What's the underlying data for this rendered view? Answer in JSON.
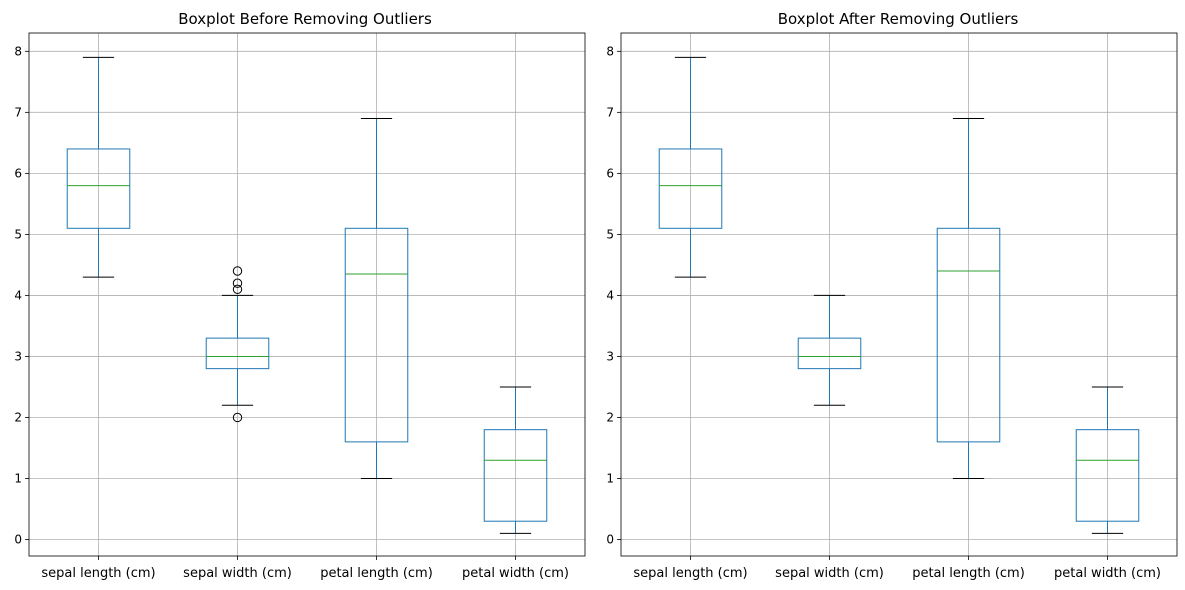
{
  "chart_data": [
    {
      "type": "boxplot",
      "title": "Boxplot Before Removing Outliers",
      "categories": [
        "sepal length (cm)",
        "sepal width (cm)",
        "petal length (cm)",
        "petal width (cm)"
      ],
      "boxes": [
        {
          "whisker_low": 4.3,
          "q1": 5.1,
          "median": 5.8,
          "q3": 6.4,
          "whisker_high": 7.9,
          "outliers": []
        },
        {
          "whisker_low": 2.2,
          "q1": 2.8,
          "median": 3.0,
          "q3": 3.3,
          "whisker_high": 4.0,
          "outliers": [
            4.4,
            4.2,
            4.1,
            2.0
          ]
        },
        {
          "whisker_low": 1.0,
          "q1": 1.6,
          "median": 4.35,
          "q3": 5.1,
          "whisker_high": 6.9,
          "outliers": []
        },
        {
          "whisker_low": 0.1,
          "q1": 0.3,
          "median": 1.3,
          "q3": 1.8,
          "whisker_high": 2.5,
          "outliers": []
        }
      ],
      "yticks": [
        "0",
        "1",
        "2",
        "3",
        "4",
        "5",
        "6",
        "7",
        "8"
      ],
      "ylim": [
        -0.27,
        8.3
      ],
      "grid": true,
      "colors": {
        "box": "#1f77b4",
        "median": "#2ca02c",
        "whisker_cap": "#000000",
        "grid": "#b0b0b0"
      }
    },
    {
      "type": "boxplot",
      "title": "Boxplot After Removing Outliers",
      "categories": [
        "sepal length (cm)",
        "sepal width (cm)",
        "petal length (cm)",
        "petal width (cm)"
      ],
      "boxes": [
        {
          "whisker_low": 4.3,
          "q1": 5.1,
          "median": 5.8,
          "q3": 6.4,
          "whisker_high": 7.9,
          "outliers": []
        },
        {
          "whisker_low": 2.2,
          "q1": 2.8,
          "median": 3.0,
          "q3": 3.3,
          "whisker_high": 4.0,
          "outliers": []
        },
        {
          "whisker_low": 1.0,
          "q1": 1.6,
          "median": 4.4,
          "q3": 5.1,
          "whisker_high": 6.9,
          "outliers": []
        },
        {
          "whisker_low": 0.1,
          "q1": 0.3,
          "median": 1.3,
          "q3": 1.8,
          "whisker_high": 2.5,
          "outliers": []
        }
      ],
      "yticks": [
        "0",
        "1",
        "2",
        "3",
        "4",
        "5",
        "6",
        "7",
        "8"
      ],
      "ylim": [
        -0.27,
        8.3
      ],
      "grid": true,
      "colors": {
        "box": "#1f77b4",
        "median": "#2ca02c",
        "whisker_cap": "#000000",
        "grid": "#b0b0b0"
      }
    }
  ]
}
